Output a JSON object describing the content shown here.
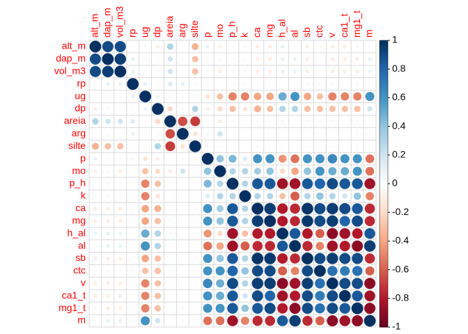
{
  "chart_data": {
    "type": "corrplot",
    "variables": [
      "alt_m",
      "dap_m",
      "vol_m3",
      "rp",
      "ug",
      "dp",
      "areia",
      "arg",
      "silte",
      "p",
      "mo",
      "p_h",
      "k",
      "ca",
      "mg",
      "h_al",
      "al",
      "sb",
      "ctc",
      "v",
      "ca1_t",
      "mg1_t",
      "m"
    ],
    "matrix": [
      [
        1,
        0.9,
        0.9,
        0.05,
        0.05,
        -0.1,
        0.3,
        0,
        -0.35,
        0.1,
        -0.1,
        -0.05,
        0.05,
        -0.1,
        -0.1,
        0.1,
        0.05,
        -0.1,
        -0.05,
        -0.1,
        -0.1,
        -0.05,
        0.05
      ],
      [
        0.9,
        1,
        0.95,
        0.1,
        0.05,
        -0.05,
        0.2,
        0.05,
        -0.3,
        0.05,
        -0.05,
        -0.05,
        0.05,
        -0.1,
        -0.1,
        0.1,
        0.1,
        -0.1,
        -0.05,
        -0.1,
        -0.1,
        -0.1,
        0.1
      ],
      [
        0.9,
        0.95,
        1,
        0.1,
        0.05,
        -0.05,
        0.2,
        0,
        -0.3,
        0.05,
        -0.1,
        -0.05,
        0.05,
        -0.1,
        -0.1,
        0.1,
        0.1,
        -0.1,
        -0.05,
        -0.1,
        -0.1,
        -0.1,
        0.1
      ],
      [
        0.05,
        0.1,
        0.1,
        1,
        0.1,
        0.05,
        0.15,
        0.1,
        -0.05,
        0.05,
        0,
        0.05,
        0.05,
        0.05,
        0.05,
        0,
        0,
        0.05,
        0.05,
        0.05,
        0,
        0.05,
        -0.05
      ],
      [
        0.05,
        0.05,
        0.05,
        0.1,
        1,
        0.1,
        -0.05,
        0.05,
        0.05,
        -0.15,
        -0.3,
        -0.5,
        -0.5,
        -0.4,
        -0.4,
        0.5,
        0.6,
        -0.4,
        -0.3,
        -0.5,
        -0.5,
        -0.5,
        0.6
      ],
      [
        -0.1,
        -0.05,
        -0.05,
        0.05,
        0.1,
        1,
        -0.2,
        -0.05,
        0.3,
        -0.1,
        -0.2,
        -0.3,
        -0.15,
        -0.35,
        -0.3,
        0.3,
        0.3,
        -0.3,
        -0.3,
        -0.3,
        -0.3,
        -0.3,
        0.2
      ],
      [
        0.3,
        0.2,
        0.2,
        0.15,
        -0.05,
        -0.2,
        1,
        -0.65,
        -0.7,
        0,
        -0.1,
        0.05,
        0,
        0.05,
        0.05,
        -0.05,
        0,
        0.05,
        0.05,
        0.05,
        0,
        0.05,
        0
      ],
      [
        0,
        0.05,
        0,
        0.1,
        0.05,
        -0.05,
        -0.65,
        1,
        -0.15,
        0.05,
        0.2,
        0,
        0,
        0,
        0,
        0,
        0,
        0,
        0,
        0,
        0,
        0.05,
        0.05
      ],
      [
        -0.35,
        -0.3,
        -0.3,
        -0.05,
        0.05,
        0.3,
        -0.7,
        -0.15,
        1,
        -0.05,
        0.05,
        -0.05,
        0,
        -0.05,
        -0.05,
        0.05,
        0,
        -0.05,
        -0.05,
        -0.05,
        0,
        -0.05,
        0
      ],
      [
        0.1,
        0.05,
        0.05,
        0.05,
        -0.15,
        -0.1,
        0,
        0.05,
        -0.05,
        1,
        0.4,
        0.45,
        0.15,
        0.6,
        0.6,
        -0.45,
        -0.55,
        0.6,
        0.6,
        0.65,
        0.6,
        0.6,
        -0.55
      ],
      [
        -0.1,
        -0.05,
        -0.1,
        0,
        -0.3,
        -0.2,
        -0.1,
        0.2,
        0.05,
        0.4,
        1,
        0.3,
        0.3,
        0.35,
        0.4,
        -0.2,
        -0.4,
        0.4,
        0.6,
        0.5,
        0.5,
        0.6,
        -0.55
      ],
      [
        -0.05,
        -0.05,
        -0.05,
        0.05,
        -0.5,
        -0.3,
        0.05,
        0,
        -0.05,
        0.45,
        0.3,
        1,
        0.3,
        0.85,
        0.85,
        -0.85,
        -0.85,
        0.85,
        0.8,
        0.9,
        0.85,
        0.85,
        -0.85
      ],
      [
        0.05,
        0.05,
        0.05,
        0.05,
        -0.5,
        -0.15,
        0,
        0,
        0,
        0.15,
        0.3,
        0.3,
        1,
        0.3,
        0.3,
        -0.3,
        -0.6,
        0.3,
        0.4,
        0.3,
        0.2,
        0.4,
        -0.5
      ],
      [
        -0.1,
        -0.1,
        -0.1,
        0.05,
        -0.4,
        -0.35,
        0.05,
        0,
        -0.05,
        0.6,
        0.35,
        0.85,
        0.3,
        1,
        0.95,
        -0.8,
        -0.75,
        0.98,
        0.9,
        0.95,
        0.9,
        0.85,
        -0.75
      ],
      [
        -0.1,
        -0.1,
        -0.1,
        0.05,
        -0.4,
        -0.3,
        0.05,
        0,
        -0.05,
        0.6,
        0.4,
        0.85,
        0.3,
        0.95,
        1,
        -0.8,
        -0.75,
        0.97,
        0.9,
        0.95,
        0.8,
        0.9,
        -0.75
      ],
      [
        0.1,
        0.1,
        0.1,
        0,
        0.5,
        0.3,
        -0.05,
        0,
        0.05,
        -0.45,
        -0.2,
        -0.85,
        -0.3,
        -0.8,
        -0.8,
        1,
        0.85,
        -0.8,
        -0.6,
        -0.9,
        -0.85,
        -0.8,
        0.85
      ],
      [
        0.05,
        0.1,
        0.1,
        0,
        0.6,
        0.3,
        0,
        0,
        0,
        -0.55,
        -0.4,
        -0.85,
        -0.6,
        -0.75,
        -0.75,
        0.85,
        1,
        -0.75,
        -0.5,
        -0.85,
        -0.8,
        -0.9,
        0.95
      ],
      [
        -0.1,
        -0.1,
        -0.1,
        0.05,
        -0.4,
        -0.3,
        0.05,
        0,
        -0.05,
        0.6,
        0.4,
        0.85,
        0.3,
        0.98,
        0.97,
        -0.8,
        -0.75,
        1,
        0.9,
        0.95,
        0.9,
        0.9,
        -0.75
      ],
      [
        -0.05,
        -0.05,
        -0.05,
        0.05,
        -0.3,
        -0.3,
        0.05,
        0,
        -0.05,
        0.6,
        0.6,
        0.8,
        0.4,
        0.9,
        0.9,
        -0.6,
        -0.5,
        0.9,
        1,
        0.75,
        0.7,
        0.75,
        -0.6
      ],
      [
        -0.1,
        -0.1,
        -0.1,
        0.05,
        -0.5,
        -0.3,
        0.05,
        0,
        -0.05,
        0.65,
        0.5,
        0.9,
        0.3,
        0.95,
        0.95,
        -0.9,
        -0.85,
        0.95,
        0.75,
        1,
        0.9,
        0.9,
        -0.9
      ],
      [
        -0.1,
        -0.1,
        -0.1,
        0,
        -0.5,
        -0.3,
        0,
        0,
        0,
        0.6,
        0.5,
        0.85,
        0.2,
        0.9,
        0.8,
        -0.85,
        -0.8,
        0.9,
        0.7,
        0.9,
        1,
        0.85,
        -0.85
      ],
      [
        -0.05,
        -0.1,
        -0.1,
        0.05,
        -0.5,
        -0.3,
        0.05,
        0.05,
        -0.05,
        0.6,
        0.6,
        0.85,
        0.4,
        0.85,
        0.9,
        -0.8,
        -0.9,
        0.9,
        0.75,
        0.9,
        0.85,
        1,
        -0.9
      ],
      [
        0.05,
        0.1,
        0.1,
        -0.05,
        0.6,
        0.2,
        0,
        0.05,
        0,
        -0.55,
        -0.55,
        -0.85,
        -0.5,
        -0.75,
        -0.75,
        0.85,
        0.95,
        -0.75,
        -0.6,
        -0.9,
        -0.85,
        -0.9,
        1
      ]
    ],
    "clim": [
      -1,
      1
    ],
    "colorbar_ticks": [
      -1,
      -0.8,
      -0.6,
      -0.4,
      -0.2,
      0,
      0.2,
      0.4,
      0.6,
      0.8,
      1
    ],
    "colors": [
      "#67001F",
      "#B2182B",
      "#D6604D",
      "#F4A582",
      "#FDDBC7",
      "#FFFFFF",
      "#D1E5F0",
      "#92C5DE",
      "#4393C3",
      "#2166AC",
      "#053061"
    ],
    "label_color": "#FF0000"
  }
}
